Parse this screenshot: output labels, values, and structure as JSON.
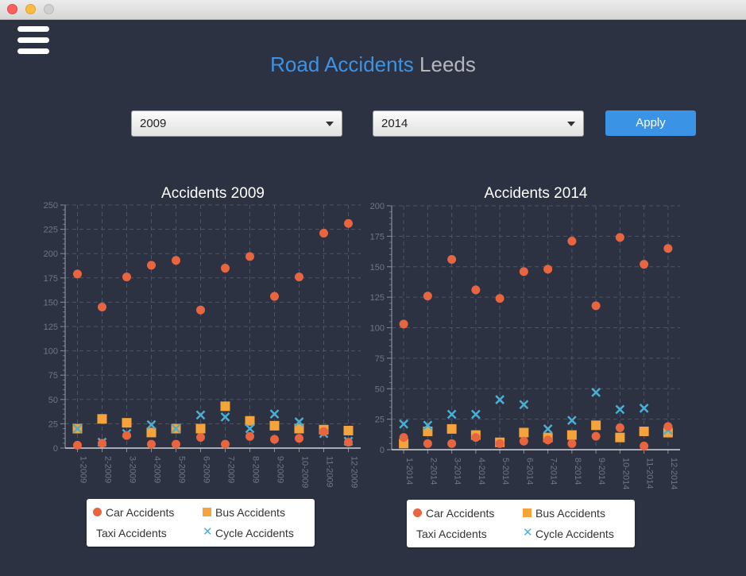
{
  "window": {
    "title": ""
  },
  "header": {
    "title_part1": "Road Accidents",
    "title_part2": "Leeds"
  },
  "controls": {
    "from_year": "2009",
    "to_year": "2014",
    "apply_label": "Apply"
  },
  "legend": {
    "car": "Car Accidents",
    "bus": "Bus Accidents",
    "taxi": "Taxi Accidents",
    "cycle": "Cycle Accidents"
  },
  "colors": {
    "car": "#e8653f",
    "bus": "#f5a33b",
    "taxi": "#ffffff",
    "cycle": "#4ab0d3",
    "accent": "#3b93e6"
  },
  "chart_data": [
    {
      "type": "scatter",
      "title": "Accidents 2009",
      "categories": [
        "1-2009",
        "2-2009",
        "3-2009",
        "4-2009",
        "5-2009",
        "6-2009",
        "7-2009",
        "8-2009",
        "9-2009",
        "10-2009",
        "11-2009",
        "12-2009"
      ],
      "ylim": [
        0,
        250
      ],
      "ytick_step": 25,
      "grid": true,
      "legend_position": "bottom",
      "series": [
        {
          "name": "Car Accidents",
          "marker": "circle",
          "values": [
            179,
            145,
            176,
            188,
            193,
            142,
            185,
            197,
            156,
            176,
            221,
            231
          ]
        },
        {
          "name": "Bus Accidents",
          "marker": "square",
          "values": [
            20,
            30,
            26,
            16,
            20,
            20,
            43,
            28,
            23,
            20,
            19,
            18
          ]
        },
        {
          "name": "Taxi Accidents",
          "marker": "none",
          "values": []
        },
        {
          "name": "Cycle Accidents",
          "marker": "x",
          "values": [
            20,
            6,
            15,
            24,
            20,
            34,
            32,
            20,
            35,
            27,
            15,
            7
          ]
        },
        {
          "name": "Car Accidents (low)",
          "marker": "circle",
          "values": [
            3,
            5,
            13,
            4,
            4,
            11,
            4,
            12,
            9,
            10,
            17,
            6
          ]
        }
      ]
    },
    {
      "type": "scatter",
      "title": "Accidents 2014",
      "categories": [
        "1-2014",
        "2-2014",
        "3-2014",
        "4-2014",
        "5-2014",
        "6-2014",
        "7-2014",
        "8-2014",
        "9-2014",
        "10-2014",
        "11-2014",
        "12-2014"
      ],
      "ylim": [
        0,
        200
      ],
      "ytick_step": 25,
      "grid": true,
      "legend_position": "bottom",
      "series": [
        {
          "name": "Car Accidents",
          "marker": "circle",
          "values": [
            103,
            126,
            156,
            131,
            124,
            146,
            148,
            171,
            118,
            174,
            152,
            165
          ]
        },
        {
          "name": "Bus Accidents",
          "marker": "square",
          "values": [
            5,
            15,
            17,
            12,
            6,
            14,
            10,
            12,
            20,
            10,
            15,
            14
          ]
        },
        {
          "name": "Taxi Accidents",
          "marker": "none",
          "values": []
        },
        {
          "name": "Cycle Accidents",
          "marker": "x",
          "values": [
            21,
            20,
            29,
            29,
            41,
            37,
            17,
            24,
            47,
            33,
            34,
            16
          ]
        },
        {
          "name": "Car Accidents (low)",
          "marker": "circle",
          "values": [
            10,
            5,
            5,
            10,
            5,
            7,
            8,
            5,
            11,
            18,
            3,
            19
          ]
        }
      ]
    }
  ]
}
